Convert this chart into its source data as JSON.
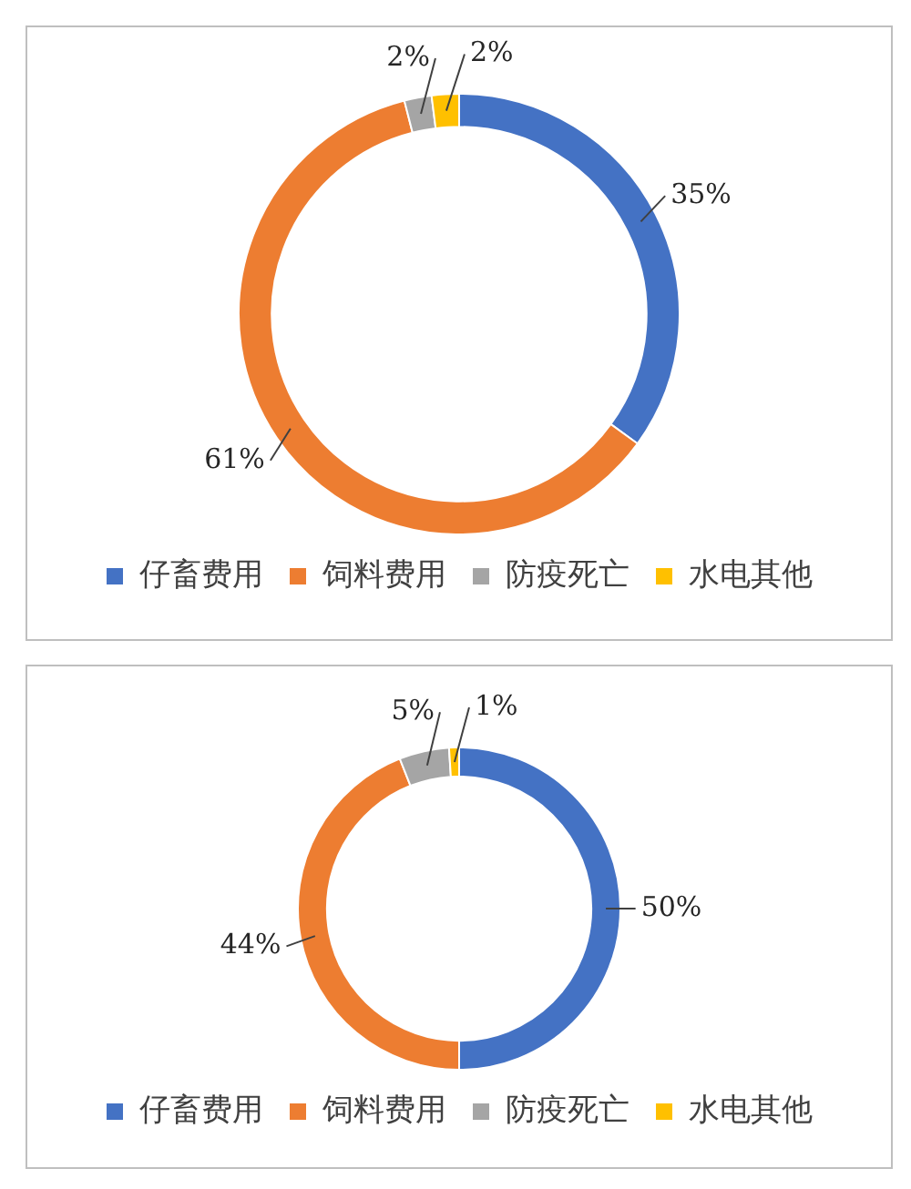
{
  "chart_data": [
    {
      "type": "donut",
      "categories": [
        "仔畜费用",
        "饲料费用",
        "防疫死亡",
        "水电其他"
      ],
      "values": [
        35,
        61,
        2,
        2
      ],
      "value_labels": [
        "35%",
        "61%",
        "2%",
        "2%"
      ],
      "colors": [
        "#4472c4",
        "#ed7d31",
        "#a5a5a5",
        "#ffc000"
      ],
      "legend": "bottom"
    },
    {
      "type": "donut",
      "categories": [
        "仔畜费用",
        "饲料费用",
        "防疫死亡",
        "水电其他"
      ],
      "values": [
        50,
        44,
        5,
        1
      ],
      "value_labels": [
        "50%",
        "44%",
        "5%",
        "1%"
      ],
      "colors": [
        "#4472c4",
        "#ed7d31",
        "#a5a5a5",
        "#ffc000"
      ],
      "legend": "bottom"
    }
  ]
}
